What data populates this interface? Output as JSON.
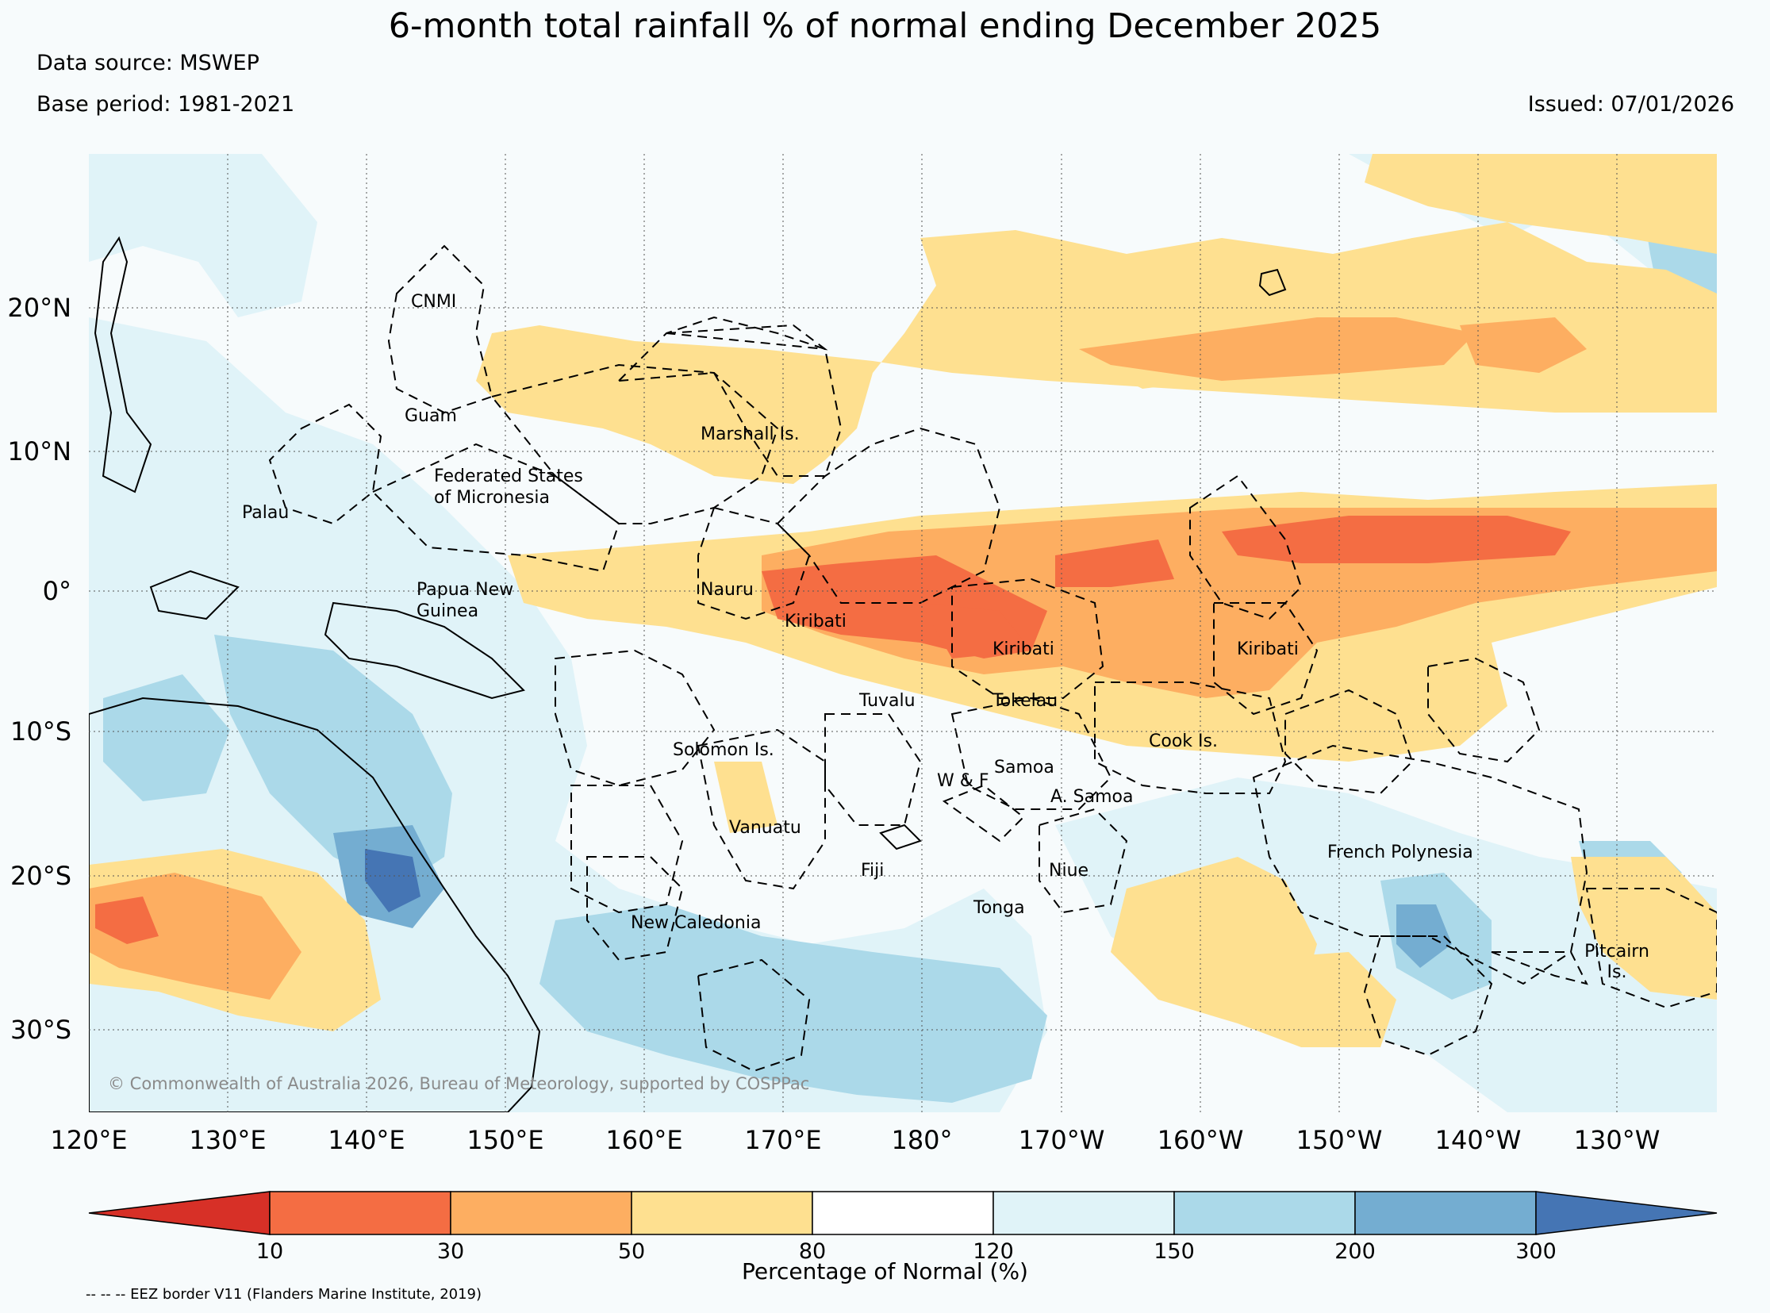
{
  "title": "6-month total rainfall % of normal ending December 2025",
  "data_source": "Data source: MSWEP",
  "base_period": "Base period: 1981-2021",
  "issued": "Issued: 07/01/2026",
  "copyright": "© Commonwealth of Australia 2026, Bureau of Meteorology, supported by COSPPac",
  "lat_labels": [
    "20°N",
    "10°N",
    "0°",
    "10°S",
    "20°S",
    "30°S"
  ],
  "lon_labels": [
    "120°E",
    "130°E",
    "140°E",
    "150°E",
    "160°E",
    "170°E",
    "180°",
    "170°W",
    "160°W",
    "150°W",
    "140°W",
    "130°W"
  ],
  "region_labels": [
    "CNMI",
    "Guam",
    "Marshall Is.",
    "Federated States",
    "of Micronesia",
    "Palau",
    "Papua New",
    "Guinea",
    "Nauru",
    "Kiribati",
    "Kiribati",
    "Kiribati",
    "Tuvalu",
    "Tokelau",
    "Solomon Is.",
    "Cook Is.",
    "Samoa",
    "W & F",
    "A. Samoa",
    "Vanuatu",
    "Fiji",
    "Niue",
    "Tonga",
    "French Polynesia",
    "New Caledonia",
    "Pitcairn",
    "Is."
  ],
  "colorbar": {
    "title": "Percentage of Normal (%)",
    "ticks": [
      "10",
      "30",
      "50",
      "80",
      "120",
      "150",
      "200",
      "300"
    ],
    "colors": [
      "#d73027",
      "#f46d43",
      "#fdae61",
      "#fee090",
      "#ffffff",
      "#e0f3f8",
      "#abd9e9",
      "#74add1",
      "#4575b4"
    ]
  },
  "footnote": "-- -- -- EEZ border V11 (Flanders Marine Institute, 2019)"
}
